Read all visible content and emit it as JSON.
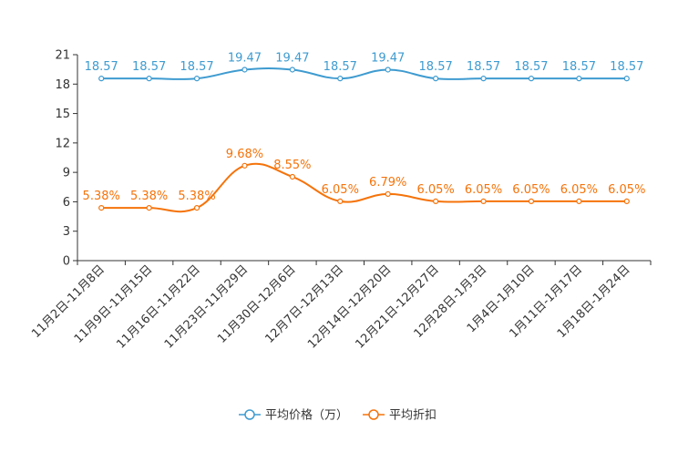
{
  "chart_data": {
    "type": "line",
    "categories": [
      "11月2日-11月8日",
      "11月9日-11月15日",
      "11月16日-11月22日",
      "11月23日-11月29日",
      "11月30日-12月6日",
      "12月7日-12月13日",
      "12月14日-12月20日",
      "12月21日-12月27日",
      "12月28日-1月3日",
      "1月4日-1月10日",
      "1月11日-1月17日",
      "1月18日-1月24日"
    ],
    "ylim": [
      0,
      21
    ],
    "yticks": [
      0,
      3,
      6,
      9,
      12,
      15,
      18,
      21
    ],
    "series": [
      {
        "name": "平均价格（万）",
        "color": "#3e9bd0",
        "values": [
          18.57,
          18.57,
          18.57,
          19.47,
          19.47,
          18.57,
          19.47,
          18.57,
          18.57,
          18.57,
          18.57,
          18.57
        ],
        "labels": [
          "18.57",
          "18.57",
          "18.57",
          "19.47",
          "19.47",
          "18.57",
          "19.47",
          "18.57",
          "18.57",
          "18.57",
          "18.57",
          "18.57"
        ]
      },
      {
        "name": "平均折扣",
        "color": "#f5730a",
        "values": [
          5.38,
          5.38,
          5.38,
          9.68,
          8.55,
          6.05,
          6.79,
          6.05,
          6.05,
          6.05,
          6.05,
          6.05
        ],
        "labels": [
          "5.38%",
          "5.38%",
          "5.38%",
          "9.68%",
          "8.55%",
          "6.05%",
          "6.79%",
          "6.05%",
          "6.05%",
          "6.05%",
          "6.05%",
          "6.05%"
        ]
      }
    ],
    "legend_position": "bottom"
  }
}
